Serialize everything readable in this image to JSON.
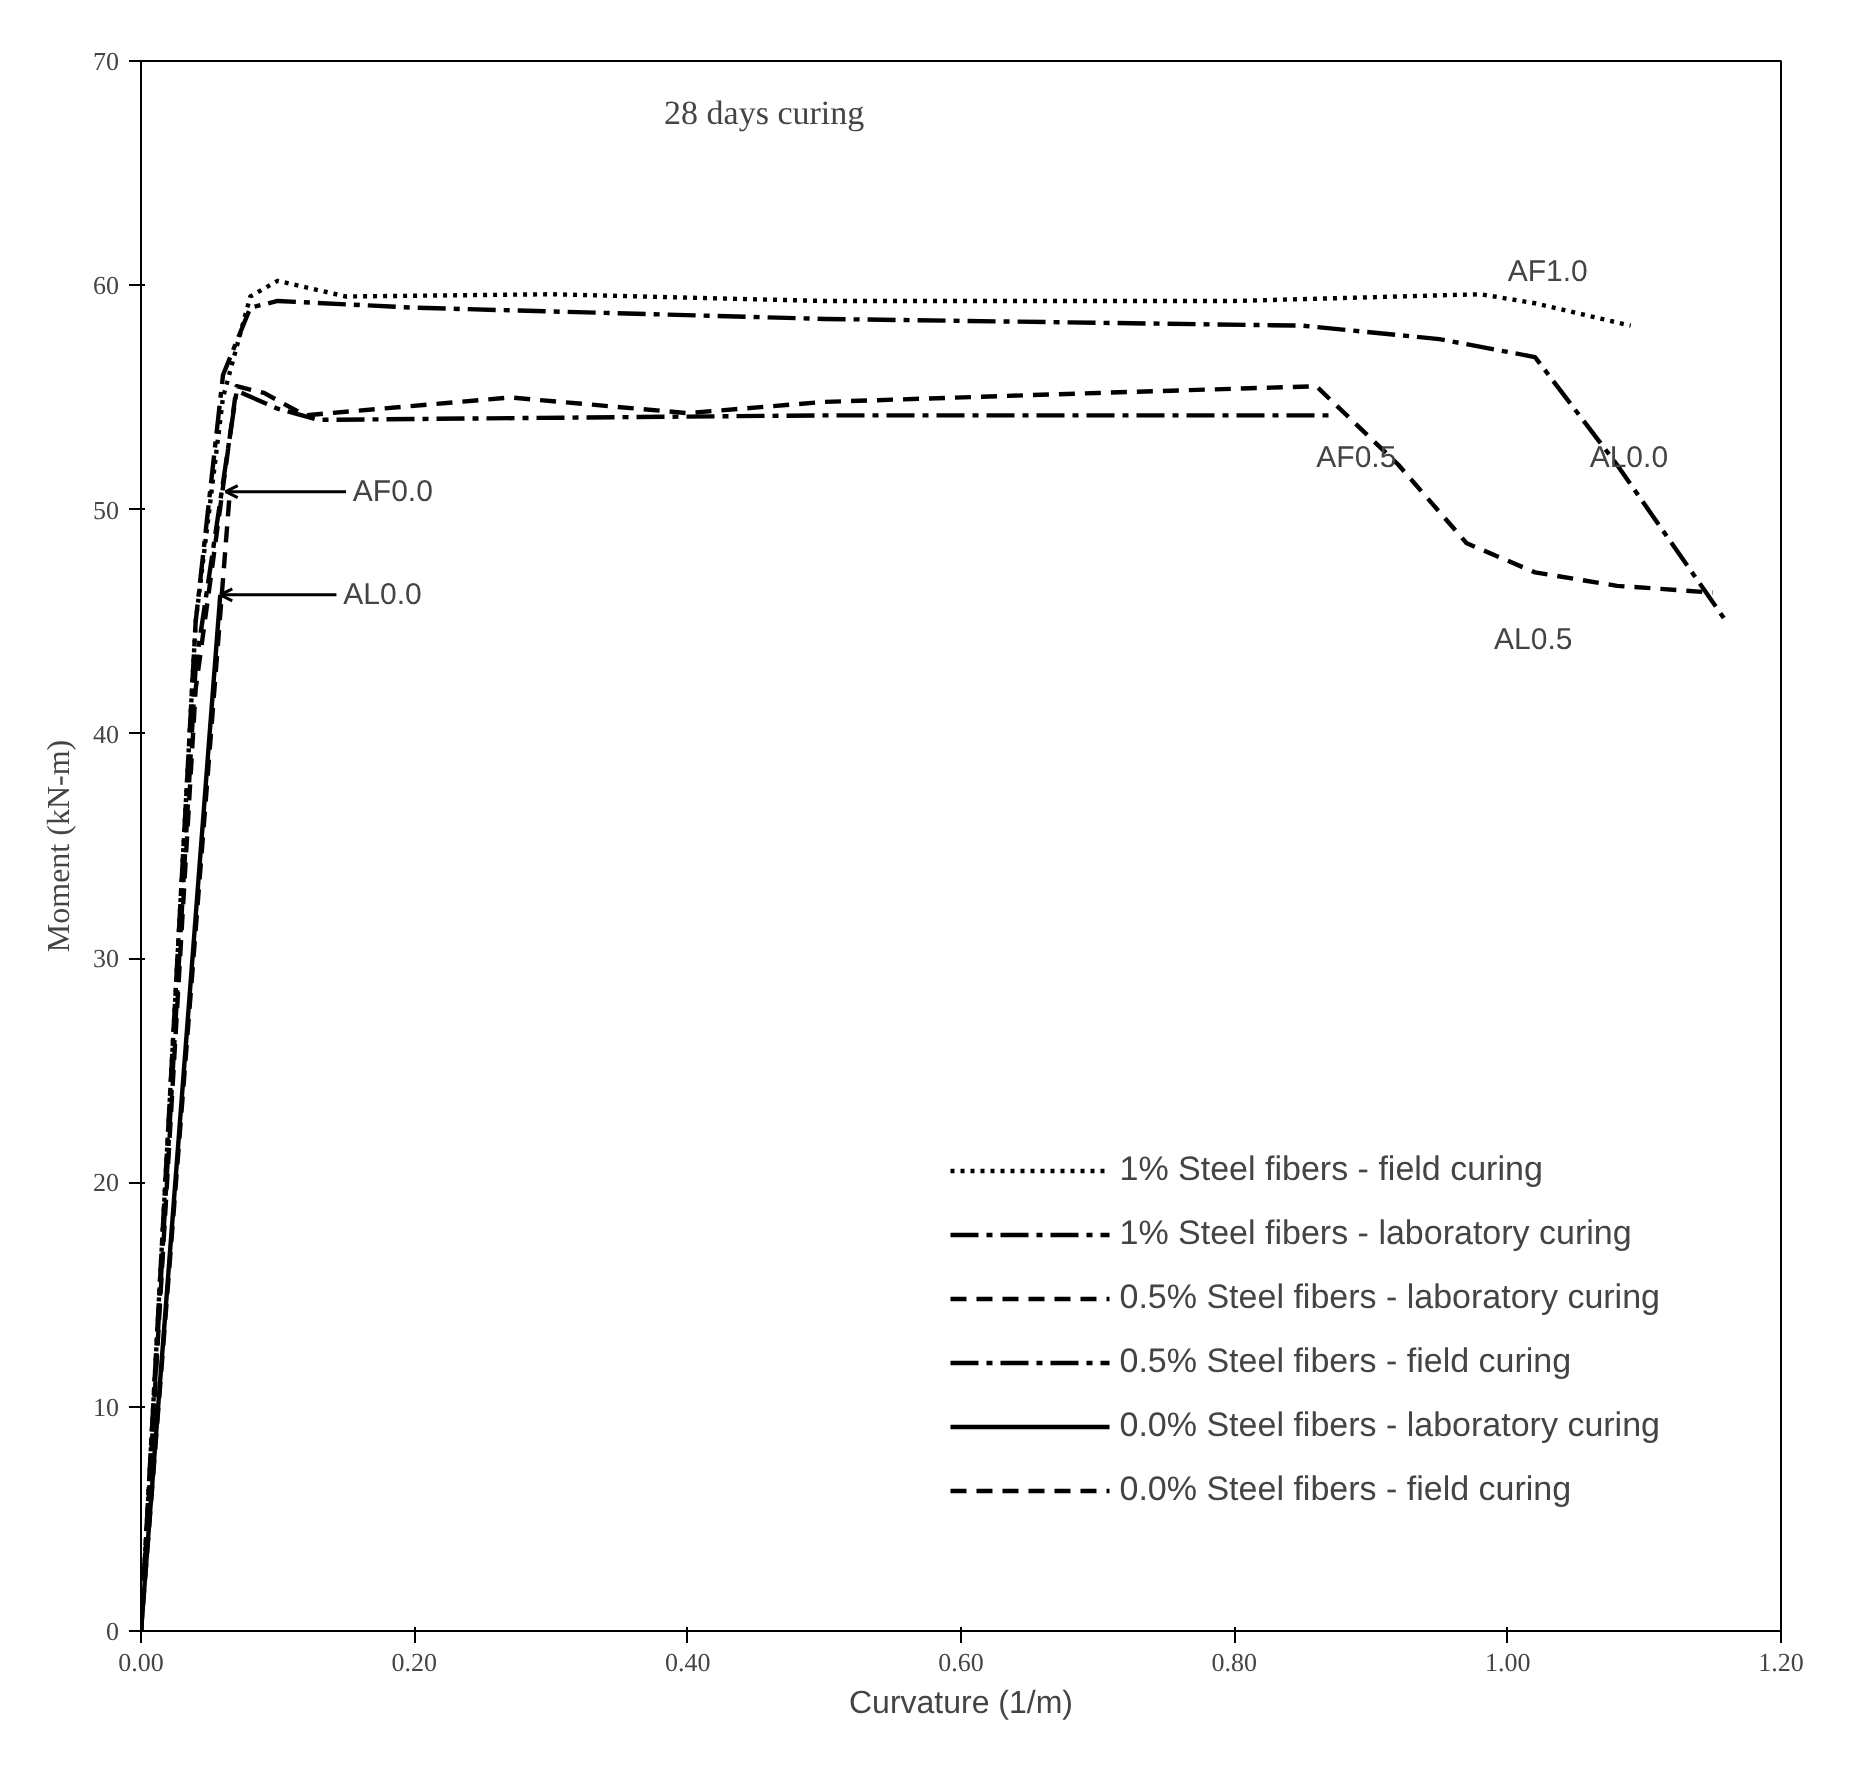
{
  "chart_data": {
    "type": "line",
    "title": "28 days curing",
    "xlabel": "Curvature (1/m)",
    "ylabel": "Moment (kN-m)",
    "xlim": [
      0,
      1.2
    ],
    "ylim": [
      0,
      70
    ],
    "xticks": [
      {
        "value": 0,
        "label": "0.00"
      },
      {
        "value": 0.2,
        "label": "0.20"
      },
      {
        "value": 0.4,
        "label": "0.40"
      },
      {
        "value": 0.6,
        "label": "0.60"
      },
      {
        "value": 0.8,
        "label": "0.80"
      },
      {
        "value": 1.0,
        "label": "1.00"
      },
      {
        "value": 1.2,
        "label": "1.20"
      }
    ],
    "yticks": [
      0,
      10,
      20,
      30,
      40,
      50,
      60,
      70
    ],
    "grid": false,
    "legend": "bottom right",
    "series": [
      {
        "name": "1% Steel fibers - field curing",
        "color": "#000000",
        "line_style": "dotted",
        "x": [
          0,
          0.04,
          0.06,
          0.08,
          0.1,
          0.15,
          0.3,
          0.5,
          0.8,
          0.98,
          1.02,
          1.09
        ],
        "values": [
          0,
          45,
          55,
          59.5,
          60.2,
          59.5,
          59.6,
          59.3,
          59.3,
          59.6,
          59.2,
          58.2
        ]
      },
      {
        "name": "1% Steel fibers - laboratory curing",
        "color": "#000000",
        "line_style": "dashdot",
        "x": [
          0,
          0.04,
          0.06,
          0.08,
          0.1,
          0.2,
          0.5,
          0.85,
          0.95,
          1.02,
          1.08,
          1.16
        ],
        "values": [
          0,
          45,
          56,
          59,
          59.3,
          59,
          58.5,
          58.2,
          57.6,
          56.8,
          52,
          45
        ]
      },
      {
        "name": "0.5% Steel fibers - laboratory curing",
        "color": "#000000",
        "line_style": "dashed",
        "x": [
          0,
          0.04,
          0.07,
          0.09,
          0.12,
          0.27,
          0.4,
          0.5,
          0.7,
          0.86,
          0.92,
          0.97,
          1.02,
          1.08,
          1.15
        ],
        "values": [
          0,
          42,
          55.5,
          55.2,
          54.2,
          55,
          54.3,
          54.8,
          55.2,
          55.5,
          52,
          48.5,
          47.2,
          46.6,
          46.3
        ]
      },
      {
        "name": "0.5% Steel fibers - field curing",
        "color": "#000000",
        "line_style": "dashdot",
        "x": [
          0,
          0.04,
          0.07,
          0.1,
          0.13,
          0.5,
          0.87
        ],
        "values": [
          0,
          43,
          55.3,
          54.5,
          54,
          54.2,
          54.2
        ]
      },
      {
        "name": "0.0% Steel fibers - laboratory curing",
        "color": "#000000",
        "line_style": "solid",
        "x": [
          0,
          0.058
        ],
        "values": [
          0,
          46.2
        ]
      },
      {
        "name": "0.0% Steel fibers - field curing",
        "color": "#000000",
        "line_style": "dashed",
        "x": [
          0,
          0.065
        ],
        "values": [
          0,
          50.8
        ]
      }
    ],
    "annotations": [
      "AF0.0",
      "AL0.0",
      "AF1.0",
      "AL0.0",
      "AF0.5",
      "AL0.5"
    ]
  }
}
